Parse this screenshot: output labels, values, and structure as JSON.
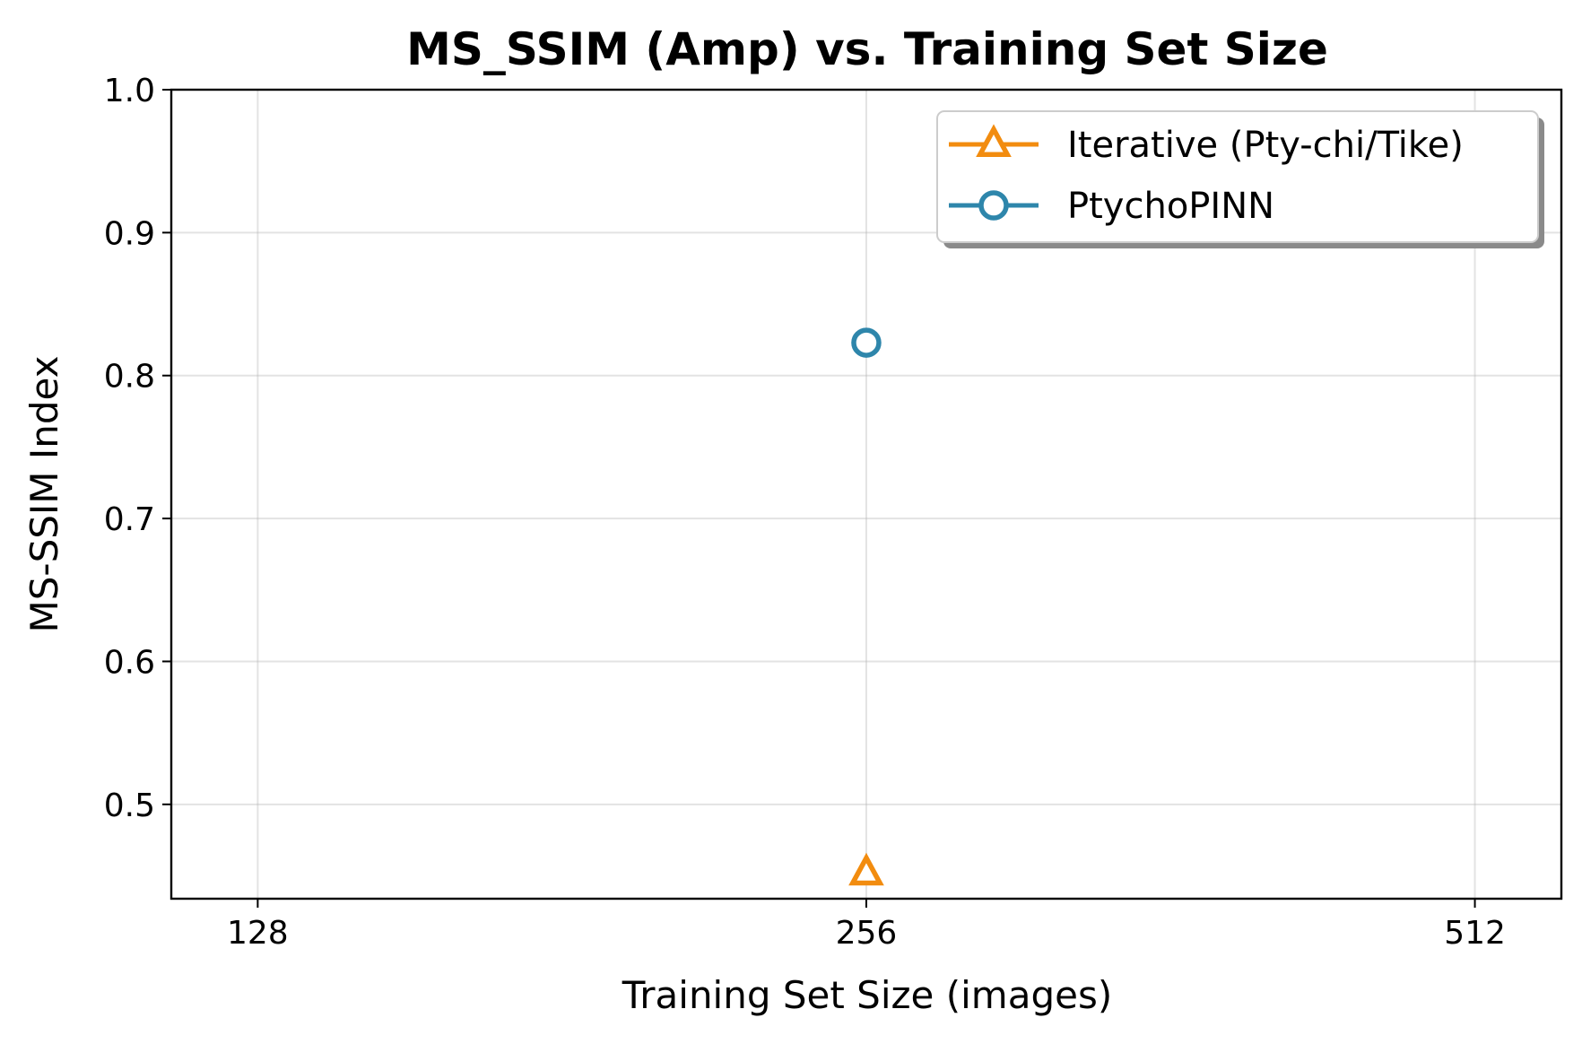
{
  "chart_data": {
    "type": "line",
    "title": "MS_SSIM (Amp) vs. Training Set Size",
    "xlabel": "Training Set Size (images)",
    "ylabel": "MS-SSIM Index",
    "x_scale": "log2",
    "x_ticks": [
      128,
      256,
      512
    ],
    "x_tick_labels": [
      "128",
      "256",
      "512"
    ],
    "xlim": [
      116,
      565
    ],
    "y_ticks": [
      0.5,
      0.6,
      0.7,
      0.8,
      0.9,
      1.0
    ],
    "y_tick_labels": [
      "0.5",
      "0.6",
      "0.7",
      "0.8",
      "0.9",
      "1.0"
    ],
    "ylim": [
      0.434,
      1.0
    ],
    "grid": true,
    "legend_position": "top-right",
    "series": [
      {
        "name": "Iterative (Pty-chi/Tike)",
        "marker": "triangle",
        "color": "#f28c0f",
        "x": [
          256
        ],
        "y": [
          0.452
        ]
      },
      {
        "name": "PtychoPINN",
        "marker": "circle",
        "color": "#2e86ab",
        "x": [
          256
        ],
        "y": [
          0.823
        ]
      }
    ]
  }
}
